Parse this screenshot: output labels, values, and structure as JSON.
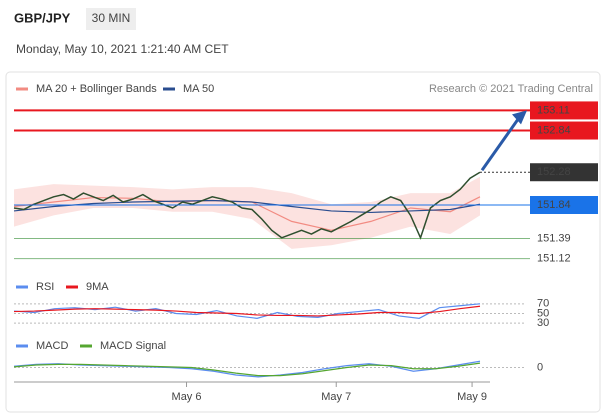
{
  "header": {
    "symbol": "GBP/JPY",
    "interval": "30 MIN",
    "timestamp": "Monday, May 10, 2021 1:21:40 AM CET",
    "credit": "Research © 2021 Trading Central"
  },
  "chart_data": [
    {
      "type": "price",
      "color": "#2f4f2f",
      "xlim": [
        0,
        47
      ],
      "ylim": [
        150.9,
        153.25
      ],
      "values": [
        151.8,
        151.78,
        151.85,
        151.9,
        151.95,
        151.98,
        151.92,
        152.0,
        151.95,
        151.9,
        151.97,
        151.88,
        151.92,
        151.98,
        151.9,
        151.85,
        151.8,
        151.88,
        151.85,
        151.9,
        151.95,
        151.92,
        151.88,
        151.8,
        151.78,
        151.65,
        151.5,
        151.4,
        151.45,
        151.5,
        151.45,
        151.52,
        151.48,
        151.55,
        151.62,
        151.7,
        151.78,
        151.88,
        151.95,
        151.9,
        151.7,
        151.4,
        151.8,
        151.9,
        151.95,
        152.05,
        152.2,
        152.28
      ],
      "series": [
        {
          "name": "MA 20 + Bollinger Bands",
          "color": "#f28b82",
          "x": [
            0,
            4,
            8,
            12,
            16,
            20,
            24,
            28,
            32,
            36,
            40,
            44,
            47
          ],
          "values": [
            151.82,
            151.88,
            151.94,
            151.93,
            151.88,
            151.9,
            151.88,
            151.62,
            151.5,
            151.62,
            151.8,
            151.75,
            151.95
          ],
          "upper": [
            152.05,
            152.12,
            152.1,
            152.08,
            152.05,
            152.08,
            152.08,
            152.0,
            151.85,
            151.88,
            152.0,
            152.0,
            152.22
          ],
          "lower": [
            151.55,
            151.7,
            151.8,
            151.8,
            151.75,
            151.75,
            151.65,
            151.25,
            151.3,
            151.4,
            151.55,
            151.45,
            151.7
          ]
        },
        {
          "name": "MA 50",
          "color": "#2a4d8f",
          "x": [
            0,
            4,
            8,
            12,
            16,
            20,
            24,
            28,
            32,
            36,
            40,
            44,
            47
          ],
          "values": [
            151.76,
            151.82,
            151.86,
            151.88,
            151.89,
            151.9,
            151.88,
            151.82,
            151.76,
            151.74,
            151.76,
            151.78,
            151.85
          ]
        }
      ],
      "levels": [
        {
          "value": 153.11,
          "color": "#e8171f",
          "style": "box"
        },
        {
          "value": 152.84,
          "color": "#e8171f",
          "style": "box"
        },
        {
          "value": 152.28,
          "color": "#333333",
          "style": "dotted"
        },
        {
          "value": 151.84,
          "color": "#1a73e8",
          "style": "box"
        },
        {
          "value": 151.39,
          "color": "#2e8b2e",
          "style": "text"
        },
        {
          "value": 151.12,
          "color": "#2e8b2e",
          "style": "text"
        }
      ]
    },
    {
      "type": "line",
      "xlim": [
        0,
        47
      ],
      "ylim": [
        20,
        80
      ],
      "yticks": [
        70,
        50,
        30
      ],
      "series": [
        {
          "name": "RSI",
          "color": "#5b8def",
          "values": [
            55,
            52,
            60,
            62,
            58,
            63,
            55,
            60,
            50,
            48,
            56,
            45,
            40,
            52,
            44,
            42,
            50,
            54,
            58,
            45,
            40,
            62,
            66,
            70
          ]
        },
        {
          "name": "9MA",
          "color": "#e8171f",
          "values": [
            54,
            55,
            57,
            59,
            60,
            59,
            58,
            57,
            55,
            52,
            51,
            50,
            47,
            46,
            46,
            45,
            47,
            49,
            52,
            52,
            50,
            54,
            60,
            65
          ]
        }
      ]
    },
    {
      "type": "line",
      "xlim": [
        0,
        47
      ],
      "ylim": [
        -0.2,
        0.2
      ],
      "yticks": [
        0
      ],
      "xticks": [
        {
          "value": 17.4,
          "label": "May 6"
        },
        {
          "value": 32.5,
          "label": "May 7"
        },
        {
          "value": 46.2,
          "label": "May 9"
        }
      ],
      "series": [
        {
          "name": "MACD",
          "color": "#5b8def",
          "values": [
            0.02,
            0.05,
            0.06,
            0.04,
            0.03,
            0.02,
            0.01,
            0.0,
            -0.02,
            -0.06,
            -0.12,
            -0.15,
            -0.12,
            -0.08,
            -0.02,
            0.03,
            0.06,
            0.02,
            -0.06,
            -0.02,
            0.04,
            0.1
          ]
        },
        {
          "name": "MACD Signal",
          "color": "#55a630",
          "values": [
            0.01,
            0.04,
            0.05,
            0.05,
            0.04,
            0.03,
            0.02,
            0.01,
            0.0,
            -0.04,
            -0.09,
            -0.13,
            -0.13,
            -0.1,
            -0.05,
            0.0,
            0.04,
            0.03,
            -0.02,
            -0.02,
            0.02,
            0.07
          ]
        }
      ]
    }
  ]
}
